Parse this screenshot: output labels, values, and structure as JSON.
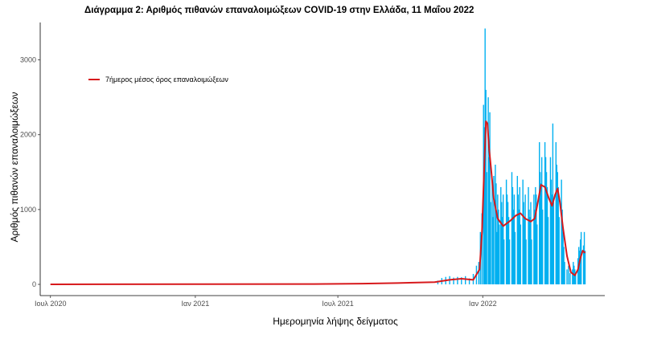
{
  "chart_data": {
    "type": "bar",
    "title": "Διάγραμμα 2: Αριθμός πιθανών επαναλοιμώξεων COVID-19 στην Ελλάδα, 11 Μαΐου 2022",
    "xlabel": "Ημερομηνία λήψης δείγματος",
    "ylabel": "Αριθμός πιθανών επαναλοιμώξεων",
    "x_type": "date",
    "xlim": [
      "2020-06-18",
      "2022-06-05"
    ],
    "ylim": [
      -150,
      3500
    ],
    "x_ticks": [
      {
        "date": "2020-07-01",
        "label": "Ιουλ 2020"
      },
      {
        "date": "2021-01-01",
        "label": "Ιαν 2021"
      },
      {
        "date": "2021-07-01",
        "label": "Ιουλ 2021"
      },
      {
        "date": "2022-01-01",
        "label": "Ιαν 2022"
      }
    ],
    "y_ticks": [
      0,
      1000,
      2000,
      3000
    ],
    "grid": false,
    "legend_position": "top-left",
    "legend": [
      {
        "label": "7ήμερος μέσος όρος επαναλοιμώξεων",
        "color": "#d7191c"
      }
    ],
    "colors": {
      "bars": "#00b0f0",
      "moving_average": "#d7191c"
    },
    "series": [
      {
        "name": "7ήμερος μέσος όρος επαναλοιμώξεων",
        "role": "moving_average",
        "points": [
          [
            "2020-07-01",
            0
          ],
          [
            "2021-01-01",
            2
          ],
          [
            "2021-06-01",
            5
          ],
          [
            "2021-08-01",
            10
          ],
          [
            "2021-09-15",
            18
          ],
          [
            "2021-11-01",
            30
          ],
          [
            "2021-11-20",
            60
          ],
          [
            "2021-12-05",
            75
          ],
          [
            "2021-12-20",
            60
          ],
          [
            "2021-12-28",
            200
          ],
          [
            "2021-12-31",
            700
          ],
          [
            "2022-01-03",
            1600
          ],
          [
            "2022-01-05",
            2180
          ],
          [
            "2022-01-07",
            2150
          ],
          [
            "2022-01-09",
            1820
          ],
          [
            "2022-01-12",
            1500
          ],
          [
            "2022-01-15",
            1150
          ],
          [
            "2022-01-20",
            880
          ],
          [
            "2022-01-27",
            780
          ],
          [
            "2022-02-05",
            850
          ],
          [
            "2022-02-12",
            920
          ],
          [
            "2022-02-18",
            950
          ],
          [
            "2022-02-24",
            880
          ],
          [
            "2022-03-03",
            840
          ],
          [
            "2022-03-08",
            880
          ],
          [
            "2022-03-12",
            1100
          ],
          [
            "2022-03-16",
            1330
          ],
          [
            "2022-03-21",
            1300
          ],
          [
            "2022-03-26",
            1150
          ],
          [
            "2022-03-30",
            1050
          ],
          [
            "2022-04-03",
            1200
          ],
          [
            "2022-04-06",
            1280
          ],
          [
            "2022-04-09",
            1100
          ],
          [
            "2022-04-13",
            750
          ],
          [
            "2022-04-18",
            380
          ],
          [
            "2022-04-23",
            160
          ],
          [
            "2022-04-28",
            120
          ],
          [
            "2022-05-02",
            200
          ],
          [
            "2022-05-05",
            350
          ],
          [
            "2022-05-08",
            450
          ],
          [
            "2022-05-11",
            420
          ]
        ]
      },
      {
        "name": "",
        "role": "daily",
        "points": [
          [
            "2021-11-05",
            50
          ],
          [
            "2021-11-10",
            85
          ],
          [
            "2021-11-15",
            100
          ],
          [
            "2021-11-20",
            110
          ],
          [
            "2021-11-25",
            90
          ],
          [
            "2021-11-30",
            100
          ],
          [
            "2021-12-05",
            95
          ],
          [
            "2021-12-10",
            110
          ],
          [
            "2021-12-15",
            80
          ],
          [
            "2021-12-20",
            140
          ],
          [
            "2021-12-24",
            250
          ],
          [
            "2021-12-27",
            300
          ],
          [
            "2021-12-29",
            700
          ],
          [
            "2021-12-31",
            950
          ],
          [
            "2022-01-02",
            2400
          ],
          [
            "2022-01-03",
            2100
          ],
          [
            "2022-01-04",
            3420
          ],
          [
            "2022-01-05",
            2600
          ],
          [
            "2022-01-06",
            1500
          ],
          [
            "2022-01-08",
            2500
          ],
          [
            "2022-01-09",
            1700
          ],
          [
            "2022-01-10",
            2300
          ],
          [
            "2022-01-11",
            1100
          ],
          [
            "2022-01-13",
            1400
          ],
          [
            "2022-01-14",
            900
          ],
          [
            "2022-01-15",
            1450
          ],
          [
            "2022-01-17",
            1600
          ],
          [
            "2022-01-18",
            1350
          ],
          [
            "2022-01-19",
            700
          ],
          [
            "2022-01-20",
            1200
          ],
          [
            "2022-01-21",
            1000
          ],
          [
            "2022-01-22",
            800
          ],
          [
            "2022-01-24",
            1300
          ],
          [
            "2022-01-25",
            1100
          ],
          [
            "2022-01-26",
            900
          ],
          [
            "2022-01-27",
            1200
          ],
          [
            "2022-01-28",
            600
          ],
          [
            "2022-01-31",
            1400
          ],
          [
            "2022-02-01",
            1200
          ],
          [
            "2022-02-02",
            1100
          ],
          [
            "2022-02-03",
            900
          ],
          [
            "2022-02-04",
            600
          ],
          [
            "2022-02-07",
            1500
          ],
          [
            "2022-02-08",
            1300
          ],
          [
            "2022-02-09",
            1000
          ],
          [
            "2022-02-10",
            1200
          ],
          [
            "2022-02-11",
            700
          ],
          [
            "2022-02-14",
            1450
          ],
          [
            "2022-02-15",
            1200
          ],
          [
            "2022-02-16",
            1000
          ],
          [
            "2022-02-17",
            1300
          ],
          [
            "2022-02-18",
            800
          ],
          [
            "2022-02-21",
            1400
          ],
          [
            "2022-02-22",
            1100
          ],
          [
            "2022-02-23",
            900
          ],
          [
            "2022-02-24",
            1200
          ],
          [
            "2022-02-25",
            600
          ],
          [
            "2022-02-28",
            1300
          ],
          [
            "2022-03-01",
            1000
          ],
          [
            "2022-03-02",
            900
          ],
          [
            "2022-03-03",
            1100
          ],
          [
            "2022-03-04",
            600
          ],
          [
            "2022-03-07",
            1200
          ],
          [
            "2022-03-08",
            1000
          ],
          [
            "2022-03-09",
            1300
          ],
          [
            "2022-03-10",
            1200
          ],
          [
            "2022-03-11",
            800
          ],
          [
            "2022-03-14",
            1900
          ],
          [
            "2022-03-15",
            1500
          ],
          [
            "2022-03-16",
            1350
          ],
          [
            "2022-03-17",
            1700
          ],
          [
            "2022-03-18",
            1000
          ],
          [
            "2022-03-21",
            1900
          ],
          [
            "2022-03-22",
            1700
          ],
          [
            "2022-03-23",
            1500
          ],
          [
            "2022-03-24",
            1300
          ],
          [
            "2022-03-25",
            900
          ],
          [
            "2022-03-28",
            1700
          ],
          [
            "2022-03-29",
            1400
          ],
          [
            "2022-03-30",
            1200
          ],
          [
            "2022-03-31",
            2150
          ],
          [
            "2022-04-01",
            1100
          ],
          [
            "2022-04-04",
            1900
          ],
          [
            "2022-04-05",
            1600
          ],
          [
            "2022-04-06",
            1500
          ],
          [
            "2022-04-07",
            1300
          ],
          [
            "2022-04-08",
            900
          ],
          [
            "2022-04-11",
            1400
          ],
          [
            "2022-04-12",
            1000
          ],
          [
            "2022-04-13",
            700
          ],
          [
            "2022-04-14",
            500
          ],
          [
            "2022-04-15",
            300
          ],
          [
            "2022-04-18",
            200
          ],
          [
            "2022-04-20",
            250
          ],
          [
            "2022-04-22",
            150
          ],
          [
            "2022-04-25",
            200
          ],
          [
            "2022-04-26",
            300
          ],
          [
            "2022-04-27",
            250
          ],
          [
            "2022-04-28",
            200
          ],
          [
            "2022-04-29",
            150
          ],
          [
            "2022-05-02",
            350
          ],
          [
            "2022-05-03",
            500
          ],
          [
            "2022-05-04",
            450
          ],
          [
            "2022-05-05",
            600
          ],
          [
            "2022-05-06",
            700
          ],
          [
            "2022-05-09",
            520
          ],
          [
            "2022-05-10",
            700
          ],
          [
            "2022-05-11",
            450
          ]
        ]
      }
    ]
  }
}
